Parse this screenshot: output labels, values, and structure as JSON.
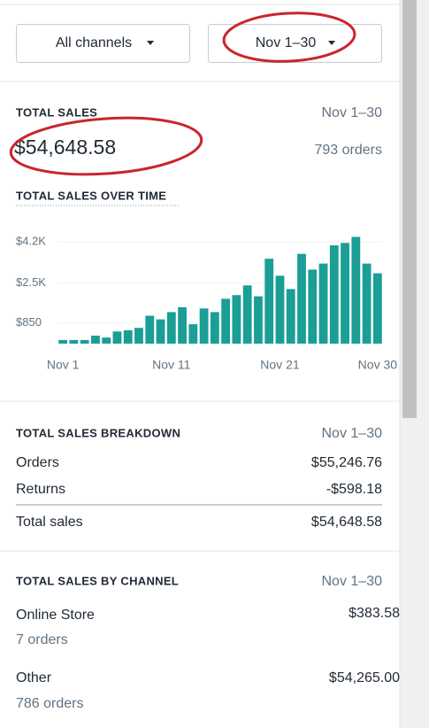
{
  "filters": {
    "channel": "All channels",
    "date": "Nov 1–30"
  },
  "summary": {
    "title": "TOTAL SALES",
    "period": "Nov 1–30",
    "amount": "$54,648.58",
    "orders": "793 orders"
  },
  "chart_data": {
    "type": "bar",
    "title": "TOTAL SALES OVER TIME",
    "categories": [
      "Nov 1",
      null,
      null,
      null,
      null,
      null,
      null,
      null,
      null,
      null,
      "Nov 11",
      null,
      null,
      null,
      null,
      null,
      null,
      null,
      null,
      null,
      "Nov 21",
      null,
      null,
      null,
      null,
      null,
      null,
      null,
      null,
      "Nov 30"
    ],
    "values": [
      150,
      150,
      150,
      330,
      250,
      500,
      550,
      650,
      1150,
      1000,
      1300,
      1500,
      800,
      1450,
      1300,
      1850,
      2000,
      2400,
      1950,
      3500,
      2800,
      2250,
      3700,
      3050,
      3300,
      4050,
      4150,
      4400,
      3300,
      2900
    ],
    "color": "#1a9e96",
    "ylim": [
      0,
      4600
    ],
    "yticks": [
      {
        "value": 850,
        "label": "$850"
      },
      {
        "value": 2500,
        "label": "$2.5K"
      },
      {
        "value": 4200,
        "label": "$4.2K"
      }
    ],
    "grid": true
  },
  "breakdown": {
    "title": "TOTAL SALES BREAKDOWN",
    "period": "Nov 1–30",
    "rows": [
      [
        "Orders",
        "$55,246.76"
      ],
      [
        "Returns",
        "-$598.18"
      ],
      [
        "Total sales",
        "$54,648.58"
      ]
    ]
  },
  "channels": {
    "title": "TOTAL SALES BY CHANNEL",
    "period": "Nov 1–30",
    "rows": [
      {
        "name": "Online Store",
        "amount": "$383.58",
        "orders": "7 orders"
      },
      {
        "name": "Other",
        "amount": "$54,265.00",
        "orders": "786 orders"
      }
    ]
  }
}
